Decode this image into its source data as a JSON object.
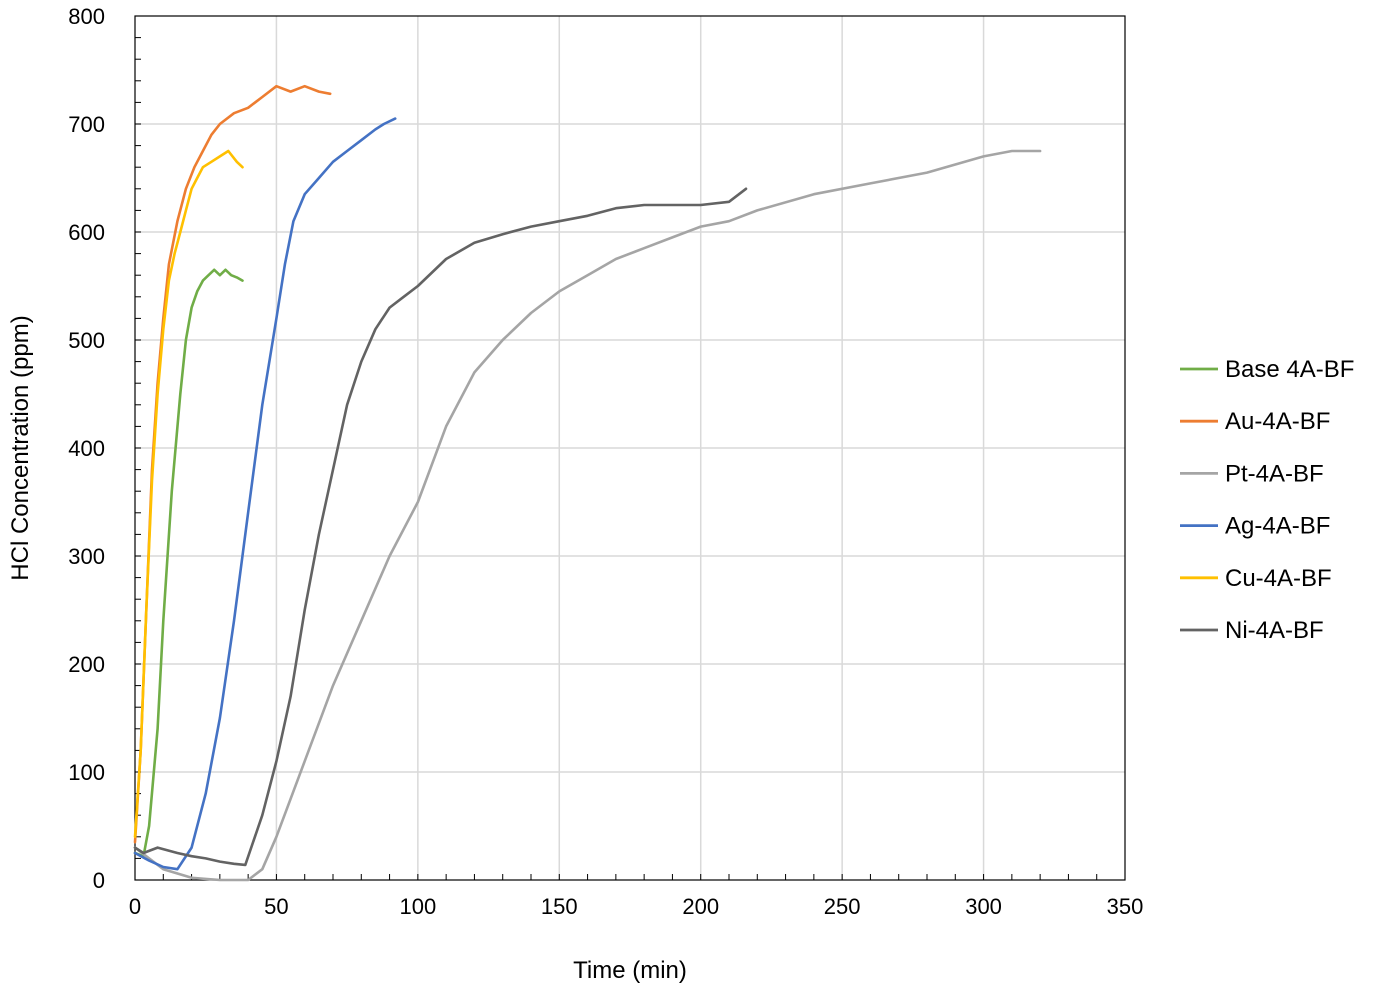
{
  "chart_data": {
    "type": "line",
    "title": "",
    "xlabel": "Time (min)",
    "ylabel": "HCl Concentration (ppm)",
    "xlim": [
      0,
      350
    ],
    "ylim": [
      0,
      800
    ],
    "xticks": [
      "0",
      "50",
      "100",
      "150",
      "200",
      "250",
      "300",
      "350"
    ],
    "yticks": [
      "0",
      "100",
      "200",
      "300",
      "400",
      "500",
      "600",
      "700",
      "800"
    ],
    "grid": true,
    "legend_position": "right",
    "series": [
      {
        "name": "Base 4A-BF",
        "color": "#70AD47",
        "x": [
          0,
          3,
          5,
          8,
          10,
          13,
          16,
          18,
          20,
          22,
          24,
          26,
          28,
          30,
          32,
          34,
          36,
          38
        ],
        "y": [
          25,
          22,
          50,
          140,
          240,
          360,
          450,
          500,
          530,
          545,
          555,
          560,
          565,
          560,
          565,
          560,
          558,
          555
        ]
      },
      {
        "name": "Au-4A-BF",
        "color": "#ED7D31",
        "x": [
          0,
          2,
          4,
          6,
          8,
          10,
          12,
          15,
          18,
          21,
          24,
          27,
          30,
          35,
          40,
          45,
          50,
          55,
          60,
          65,
          69
        ],
        "y": [
          35,
          120,
          250,
          380,
          460,
          520,
          570,
          610,
          640,
          660,
          675,
          690,
          700,
          710,
          715,
          725,
          735,
          730,
          735,
          730,
          728
        ]
      },
      {
        "name": "Pt-4A-BF",
        "color": "#A5A5A5",
        "x": [
          0,
          10,
          20,
          30,
          40,
          45,
          50,
          60,
          70,
          80,
          90,
          100,
          110,
          120,
          130,
          140,
          150,
          160,
          170,
          180,
          190,
          200,
          210,
          220,
          240,
          260,
          280,
          300,
          310,
          320
        ],
        "y": [
          30,
          10,
          2,
          0,
          0,
          10,
          40,
          110,
          180,
          240,
          300,
          350,
          420,
          470,
          500,
          525,
          545,
          560,
          575,
          585,
          595,
          605,
          610,
          620,
          635,
          645,
          655,
          670,
          675,
          675
        ]
      },
      {
        "name": "Ag-4A-BF",
        "color": "#4472C4",
        "x": [
          0,
          5,
          10,
          15,
          20,
          25,
          30,
          35,
          40,
          45,
          50,
          53,
          56,
          60,
          65,
          70,
          75,
          80,
          85,
          88,
          92
        ],
        "y": [
          25,
          18,
          12,
          10,
          30,
          80,
          150,
          240,
          340,
          440,
          520,
          570,
          610,
          635,
          650,
          665,
          675,
          685,
          695,
          700,
          705
        ]
      },
      {
        "name": "Cu-4A-BF",
        "color": "#FFC000",
        "x": [
          0,
          2,
          4,
          6,
          8,
          10,
          12,
          14,
          16,
          18,
          20,
          22,
          24,
          27,
          30,
          33,
          36,
          38
        ],
        "y": [
          40,
          120,
          250,
          370,
          450,
          510,
          555,
          580,
          600,
          620,
          640,
          650,
          660,
          665,
          670,
          675,
          665,
          660
        ]
      },
      {
        "name": "Ni-4A-BF",
        "color": "#636363",
        "x": [
          0,
          3,
          8,
          15,
          20,
          25,
          30,
          35,
          39,
          45,
          50,
          55,
          60,
          65,
          70,
          75,
          80,
          85,
          90,
          95,
          100,
          110,
          120,
          130,
          140,
          150,
          160,
          170,
          180,
          190,
          200,
          210,
          216
        ],
        "y": [
          30,
          25,
          30,
          25,
          22,
          20,
          17,
          15,
          14,
          60,
          110,
          170,
          250,
          320,
          380,
          440,
          480,
          510,
          530,
          540,
          550,
          575,
          590,
          598,
          605,
          610,
          615,
          622,
          625,
          625,
          625,
          628,
          640
        ]
      }
    ]
  }
}
